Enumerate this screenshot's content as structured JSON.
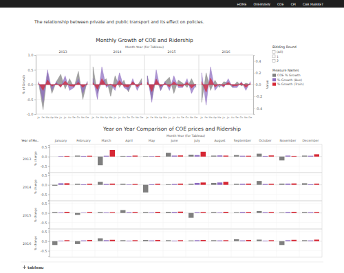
{
  "nav": [
    "HOME",
    "OVERVIEW",
    "COE",
    "CPI",
    "CAR MARKET"
  ],
  "intro": "The relationship between private and public transport and its effect on policies.",
  "filter": {
    "title": "Bidding Round",
    "options": [
      "(All)",
      "1",
      "2"
    ]
  },
  "footer": "tableau",
  "chart_data": [
    {
      "type": "area",
      "title": "Monthly Growth of COE and Ridership",
      "subtitle": "Month Year (for Tableau)",
      "ylabel": "% of Growth",
      "y2label": "Value",
      "groups": [
        "2013",
        "2014",
        "2015",
        "2016"
      ],
      "categories": [
        "Ja",
        "Fe",
        "Ma",
        "Ap",
        "Ma",
        "Ju",
        "Ju",
        "Au",
        "Se",
        "Oc",
        "No",
        "De",
        "Ja",
        "Fe",
        "Ma",
        "Ap",
        "Ma",
        "Ju",
        "Ju",
        "Au",
        "Se",
        "Oc",
        "No",
        "De",
        "Ja",
        "Fe",
        "Ma",
        "Ap",
        "Ma",
        "Ju",
        "Ju",
        "Au",
        "Se",
        "Oc",
        "No",
        "De",
        "Ja",
        "Fe",
        "Ma",
        "Ap",
        "Ma",
        "Ju",
        "Ju",
        "Au",
        "Se",
        "Oc",
        "No",
        "De"
      ],
      "ylim": [
        -1,
        1
      ],
      "yticks": [
        {
          "value": -1,
          "label": "-1.0"
        },
        {
          "value": -0.5,
          "label": "-0.5"
        },
        {
          "value": 0,
          "label": "0.0"
        },
        {
          "value": 0.5,
          "label": "0.5"
        },
        {
          "value": 1,
          "label": "1.0"
        }
      ],
      "y2lim": [
        -0.5,
        0.5
      ],
      "y2ticks": [
        -0.4,
        -0.2,
        {
          "value": 0,
          "label": "0.0"
        },
        0.2,
        0.4
      ],
      "grid": true,
      "legend": "right",
      "legend_title": "Measure Names",
      "series": [
        {
          "name": "COE % Growth",
          "color": "#7f7f7f",
          "values": [
            0.05,
            -0.85,
            0.4,
            -0.3,
            0.1,
            0.35,
            -0.15,
            0.2,
            -0.1,
            0.45,
            -0.5,
            0.1,
            0.6,
            -0.3,
            0.1,
            0.2,
            -0.4,
            0.3,
            -0.1,
            0.15,
            -0.25,
            0.1,
            -0.05,
            0.2,
            0.3,
            -0.5,
            0.2,
            -0.2,
            0.1,
            0.25,
            -0.3,
            0.15,
            0.05,
            -0.1,
            0.2,
            -0.1,
            -0.6,
            0.4,
            -0.2,
            0.15,
            -0.1,
            0.1,
            0.05,
            -0.1,
            0.1,
            -0.05,
            0.05,
            0.0
          ]
        },
        {
          "name": "% Growth (Bus)",
          "color": "#8e6cc0",
          "axis": "y2",
          "values": [
            0.05,
            -0.3,
            0.25,
            -0.1,
            0.05,
            -0.05,
            0.15,
            -0.1,
            -0.05,
            0.1,
            -0.15,
            0.05,
            0.1,
            -0.25,
            0.3,
            -0.05,
            0.0,
            -0.1,
            0.2,
            -0.05,
            -0.1,
            0.1,
            -0.1,
            0.05,
            0.15,
            -0.3,
            0.25,
            -0.1,
            0.05,
            -0.1,
            0.15,
            -0.05,
            -0.05,
            0.1,
            -0.15,
            0.0,
            0.2,
            -0.35,
            0.3,
            -0.1,
            0.0,
            -0.05,
            0.1,
            -0.05,
            -0.05,
            0.05,
            -0.1,
            0.05
          ]
        },
        {
          "name": "% Growth (Train)",
          "color": "#d62734",
          "axis": "y2",
          "values": [
            0.02,
            -0.1,
            0.08,
            -0.03,
            0.02,
            -0.04,
            0.06,
            -0.02,
            -0.03,
            0.04,
            -0.05,
            0.02,
            0.03,
            -0.08,
            0.1,
            -0.02,
            0.01,
            -0.05,
            0.07,
            -0.03,
            -0.04,
            0.05,
            -0.04,
            0.02,
            0.04,
            -0.12,
            0.09,
            -0.03,
            0.02,
            -0.04,
            0.05,
            -0.02,
            -0.03,
            0.04,
            -0.06,
            0.01,
            0.05,
            -0.13,
            0.11,
            -0.04,
            0.01,
            -0.03,
            0.04,
            -0.02,
            -0.02,
            0.03,
            -0.05,
            0.02
          ]
        }
      ]
    },
    {
      "type": "bar",
      "title": "Year on Year Comparison of COE prices and Ridership",
      "column_header": "Month Year (for Tableau)",
      "row_header": "Year of Mo..",
      "ylabel": "% change",
      "rows": [
        "2013",
        "2014",
        "2015",
        "2016"
      ],
      "categories": [
        "January",
        "February",
        "March",
        "April",
        "May",
        "June",
        "July",
        "August",
        "September",
        "October",
        "November",
        "December"
      ],
      "ylim": [
        -0.8,
        0.6
      ],
      "yticks": [
        -0.5,
        {
          "value": 0,
          "label": "0.0"
        },
        0.5
      ],
      "grid": true,
      "series": [
        {
          "color": "#7f7f7f",
          "values": [
            [
              0.0,
              0.05,
              -0.45,
              0.03,
              0.02,
              0.2,
              0.1,
              0.05,
              0.08,
              0.15,
              -0.2,
              0.05
            ],
            [
              -0.05,
              0.05,
              0.15,
              0.05,
              -0.4,
              0.03,
              0.05,
              0.1,
              0.05,
              0.2,
              0.06,
              0.08
            ],
            [
              0.05,
              -0.1,
              0.05,
              0.15,
              0.05,
              0.06,
              -0.25,
              0.05,
              0.04,
              0.1,
              0.03,
              0.05
            ],
            [
              -0.2,
              -0.15,
              0.15,
              0.05,
              0.06,
              0.05,
              0.04,
              0.05,
              0.1,
              0.08,
              -0.2,
              0.05
            ]
          ]
        },
        {
          "color": "#8e6cc0",
          "values": [
            [
              0.02,
              0.03,
              0.04,
              0.03,
              0.02,
              0.05,
              0.08,
              0.06,
              0.04,
              0.03,
              0.05,
              0.04
            ],
            [
              0.08,
              0.03,
              0.04,
              0.02,
              0.03,
              0.04,
              0.1,
              0.12,
              0.05,
              0.04,
              0.06,
              0.03
            ],
            [
              0.03,
              0.02,
              0.03,
              0.04,
              0.03,
              0.05,
              0.04,
              0.03,
              0.05,
              0.04,
              0.05,
              0.04
            ],
            [
              0.03,
              0.04,
              0.05,
              0.03,
              0.04,
              0.03,
              0.05,
              0.04,
              0.04,
              0.03,
              0.05,
              0.04
            ]
          ]
        },
        {
          "color": "#d62734",
          "values": [
            [
              0.03,
              0.04,
              0.35,
              0.05,
              0.03,
              0.06,
              0.25,
              0.05,
              0.04,
              0.06,
              0.03,
              0.12
            ],
            [
              0.08,
              0.05,
              0.06,
              0.04,
              0.05,
              0.06,
              0.12,
              0.15,
              0.06,
              0.05,
              0.07,
              0.06
            ],
            [
              0.06,
              0.05,
              0.04,
              0.05,
              0.06,
              0.07,
              0.05,
              0.06,
              0.05,
              0.05,
              0.06,
              0.05
            ],
            [
              0.05,
              0.06,
              0.07,
              0.05,
              0.06,
              0.05,
              0.06,
              0.05,
              0.06,
              0.05,
              0.07,
              0.08
            ]
          ]
        }
      ]
    }
  ]
}
